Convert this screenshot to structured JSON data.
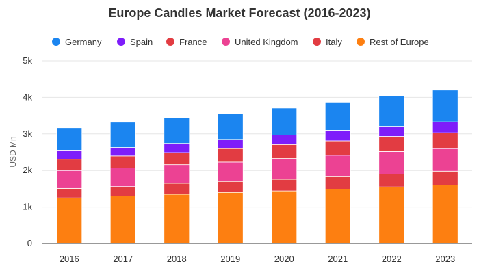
{
  "chart_data": {
    "type": "bar",
    "stacked": true,
    "title": "Europe Candles Market Forecast (2016-2023)",
    "ylabel": "USD Mn",
    "xlabel": "",
    "categories": [
      "2016",
      "2017",
      "2018",
      "2019",
      "2020",
      "2021",
      "2022",
      "2023"
    ],
    "ylim": [
      0,
      5000
    ],
    "yticks": [
      {
        "value": 0,
        "label": "0"
      },
      {
        "value": 1000,
        "label": "1k"
      },
      {
        "value": 2000,
        "label": "2k"
      },
      {
        "value": 3000,
        "label": "3k"
      },
      {
        "value": 4000,
        "label": "4k"
      },
      {
        "value": 5000,
        "label": "5k"
      }
    ],
    "grid": true,
    "legend_position": "top",
    "series": [
      {
        "name": "Rest of Europe",
        "color": "#fd7f11",
        "values": [
          1250,
          1300,
          1350,
          1400,
          1440,
          1490,
          1550,
          1600
        ]
      },
      {
        "name": "Italy",
        "color": "#e23c42",
        "values": [
          260,
          260,
          300,
          300,
          320,
          340,
          350,
          380
        ]
      },
      {
        "name": "United Kingdom",
        "color": "#ec4293",
        "values": [
          490,
          510,
          510,
          530,
          570,
          590,
          620,
          620
        ]
      },
      {
        "name": "France",
        "color": "#e23c42",
        "values": [
          310,
          330,
          330,
          370,
          380,
          390,
          410,
          430
        ]
      },
      {
        "name": "Spain",
        "color": "#7e1dfa",
        "values": [
          230,
          230,
          250,
          250,
          260,
          290,
          280,
          300
        ]
      },
      {
        "name": "Germany",
        "color": "#1b85f0",
        "values": [
          630,
          690,
          700,
          710,
          740,
          770,
          830,
          870
        ]
      }
    ],
    "legend_order": [
      "Germany",
      "Spain",
      "France",
      "United Kingdom",
      "Italy",
      "Rest of Europe"
    ]
  }
}
